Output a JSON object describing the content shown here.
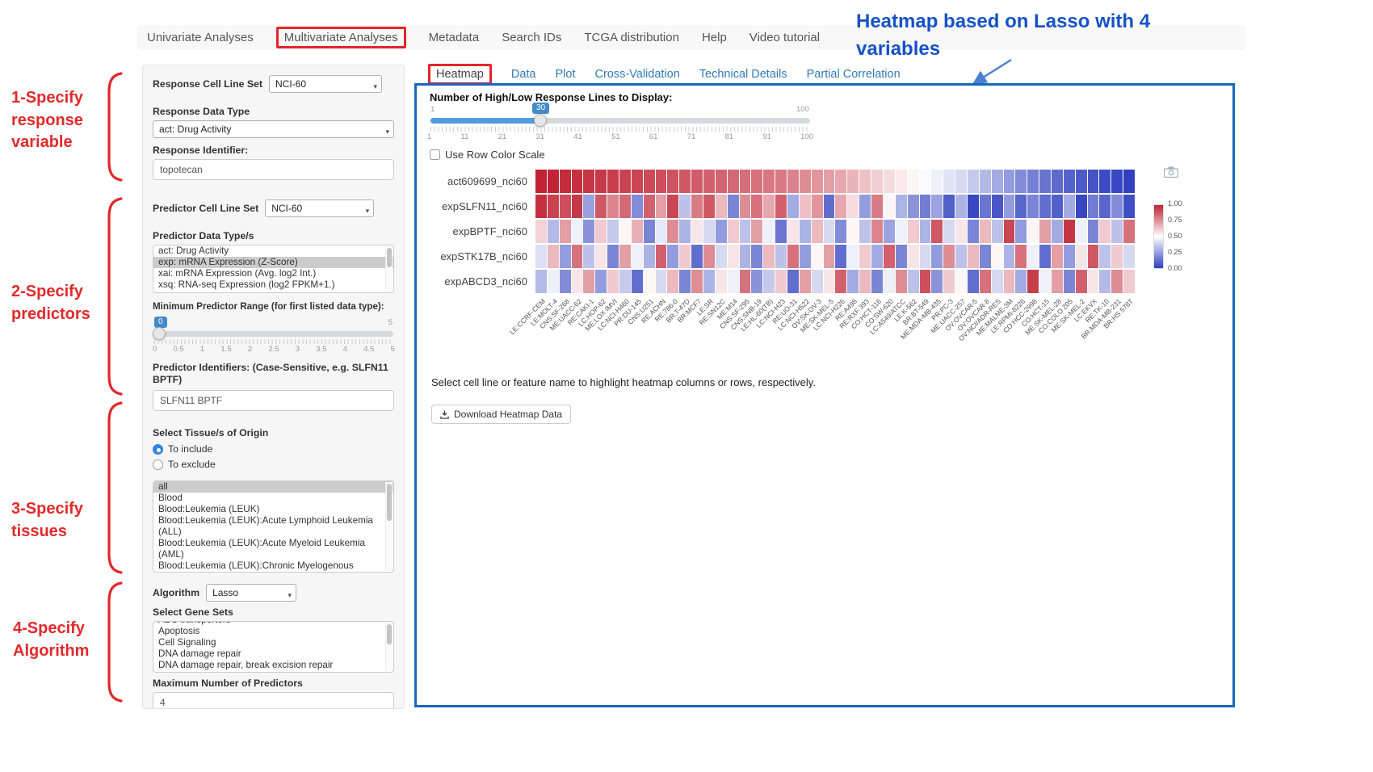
{
  "nav": {
    "tabs": [
      {
        "label": "Univariate Analyses"
      },
      {
        "label": "Multivariate Analyses",
        "active": true
      },
      {
        "label": "Metadata"
      },
      {
        "label": "Search IDs"
      },
      {
        "label": "TCGA distribution"
      },
      {
        "label": "Help"
      },
      {
        "label": "Video tutorial"
      }
    ]
  },
  "annotations": {
    "step1": {
      "lines": [
        "1-Specify",
        "response",
        "variable"
      ]
    },
    "step2": {
      "lines": [
        "2-Specify",
        "predictors"
      ]
    },
    "step3": {
      "lines": [
        "3-Specify",
        "tissues"
      ]
    },
    "step4": {
      "lines": [
        "4-Specify",
        "Algorithm"
      ]
    },
    "heatmap_note": "Heatmap based on Lasso with 4 variables"
  },
  "sidebar": {
    "response_cell_line_set": {
      "label": "Response Cell Line Set",
      "value": "NCI-60"
    },
    "response_data_type": {
      "label": "Response Data Type",
      "value": "act: Drug Activity"
    },
    "response_identifier": {
      "label": "Response Identifier:",
      "value": "topotecan"
    },
    "predictor_cell_line_set": {
      "label": "Predictor Cell Line Set",
      "value": "NCI-60"
    },
    "predictor_data_types": {
      "label": "Predictor Data Type/s",
      "options": [
        {
          "label": "act: Drug Activity",
          "selected": false
        },
        {
          "label": "exp: mRNA Expression (Z-Score)",
          "selected": true
        },
        {
          "label": "xai: mRNA Expression (Avg. log2 Int.)",
          "selected": false
        },
        {
          "label": "xsq: RNA-seq Expression (log2 FPKM+1.)",
          "selected": false
        }
      ]
    },
    "min_predictor_range": {
      "label": "Minimum Predictor Range (for first listed data type):",
      "value": "0",
      "min": "0",
      "max": "5",
      "ticks": [
        "0",
        "0.5",
        "1",
        "1.5",
        "2",
        "2.5",
        "3",
        "3.5",
        "4",
        "4.5",
        "5"
      ]
    },
    "predictor_identifiers": {
      "label": "Predictor Identifiers: (Case-Sensitive, e.g. SLFN11 BPTF)",
      "value": "SLFN11 BPTF"
    },
    "tissue_origin": {
      "label": "Select Tissue/s of Origin",
      "options": [
        {
          "label": "To include",
          "selected": true
        },
        {
          "label": "To exclude",
          "selected": false
        }
      ]
    },
    "tissue_list": {
      "options": [
        {
          "label": "all",
          "selected": true
        },
        "Blood",
        "Blood:Leukemia (LEUK)",
        "Blood:Leukemia (LEUK):Acute Lymphoid Leukemia (ALL)",
        "Blood:Leukemia (LEUK):Acute Myeloid Leukemia (AML)",
        "Blood:Leukemia (LEUK):Chronic Myelogenous Leukemia (CML)"
      ]
    },
    "algorithm": {
      "label": "Algorithm",
      "value": "Lasso"
    },
    "gene_sets": {
      "label": "Select Gene Sets",
      "options": [
        "ABC transporters",
        "Apoptosis",
        "Cell Signaling",
        "DNA damage repair",
        "DNA damage repair, break excision repair"
      ]
    },
    "max_predictors": {
      "label": "Maximum Number of Predictors",
      "value": "4"
    }
  },
  "main": {
    "tabs": [
      "Heatmap",
      "Data",
      "Plot",
      "Cross-Validation",
      "Technical Details",
      "Partial Correlation"
    ],
    "active_tab": "Heatmap",
    "slider": {
      "label": "Number of High/Low Response Lines to Display:",
      "value": "30",
      "min": "1",
      "max": "100",
      "ticks": [
        "1",
        "11",
        "21",
        "31",
        "41",
        "51",
        "61",
        "71",
        "81",
        "91",
        "100"
      ]
    },
    "row_color_scale_label": "Use Row Color Scale",
    "hint": "Select cell line or feature name to highlight heatmap columns or rows, respectively.",
    "download_button": "Download Heatmap Data"
  },
  "chart_data": {
    "type": "heatmap",
    "rows": [
      "act609699_nci60",
      "expSLFN11_nci60",
      "expBPTF_nci60",
      "expSTK17B_nci60",
      "expABCD3_nci60"
    ],
    "columns": [
      "LE:CCRF-CEM",
      "LE:MOLT-4",
      "CNS:SF-268",
      "ME:UACC-62",
      "RE:CAKI-1",
      "LC:HOP-62",
      "ME:LOX IMVI",
      "LC:NCI-H460",
      "PR:DU-145",
      "CNS:U251",
      "RE:ACHN",
      "RE:786-0",
      "BR:T-47D",
      "BR:MCF7",
      "LE:SR",
      "RE:SN12C",
      "ME:M14",
      "CNS:SF-295",
      "CNS:SNB-19",
      "LE:HL-60(TB)",
      "LC:NCI-H23",
      "RE:UO-31",
      "LC:NCI-H522",
      "OV:SK-OV-3",
      "ME:SK-MEL-5",
      "LC:NCI-H226",
      "RE:A498",
      "RE:RXF 393",
      "CO:HCT-116",
      "CO:SW-620",
      "LC:A549/ATCC",
      "LE:K-562",
      "BR:BT-549",
      "ME:MDA-MB-435",
      "PR:PC-3",
      "ME:UACC-257",
      "OV:OVCAR-5",
      "OV:OVCAR-8",
      "OV:NCI/ADR-RES",
      "ME:MALME-3M",
      "LE:RPMI-8226",
      "CO:HCC-2998",
      "CO:HCT-15",
      "ME:SK-MEL-28",
      "CO:COLO 205",
      "ME:SK-MEL-2",
      "LC:EKVX",
      "RE:TK-10",
      "BR:MDA-MB-231",
      "BR:HS 578T"
    ],
    "values": [
      [
        1.0,
        1.0,
        0.98,
        0.97,
        0.96,
        0.95,
        0.94,
        0.93,
        0.92,
        0.91,
        0.9,
        0.89,
        0.88,
        0.87,
        0.86,
        0.85,
        0.84,
        0.83,
        0.82,
        0.81,
        0.8,
        0.78,
        0.76,
        0.74,
        0.72,
        0.7,
        0.67,
        0.64,
        0.61,
        0.58,
        0.55,
        0.52,
        0.49,
        0.46,
        0.43,
        0.4,
        0.36,
        0.32,
        0.28,
        0.24,
        0.2,
        0.17,
        0.14,
        0.11,
        0.09,
        0.07,
        0.05,
        0.03,
        0.02,
        0.0
      ],
      [
        0.97,
        0.93,
        0.9,
        0.95,
        0.25,
        0.88,
        0.78,
        0.84,
        0.2,
        0.86,
        0.72,
        0.92,
        0.34,
        0.8,
        0.88,
        0.66,
        0.18,
        0.76,
        0.82,
        0.7,
        0.86,
        0.28,
        0.64,
        0.74,
        0.12,
        0.7,
        0.58,
        0.24,
        0.8,
        0.52,
        0.3,
        0.22,
        0.16,
        0.26,
        0.08,
        0.3,
        0.02,
        0.14,
        0.06,
        0.24,
        0.1,
        0.18,
        0.12,
        0.08,
        0.28,
        0.02,
        0.16,
        0.1,
        0.2,
        0.04
      ],
      [
        0.6,
        0.32,
        0.72,
        0.46,
        0.22,
        0.62,
        0.36,
        0.52,
        0.68,
        0.18,
        0.44,
        0.76,
        0.3,
        0.56,
        0.4,
        0.24,
        0.62,
        0.34,
        0.72,
        0.46,
        0.14,
        0.56,
        0.3,
        0.66,
        0.4,
        0.2,
        0.52,
        0.34,
        0.78,
        0.26,
        0.46,
        0.62,
        0.3,
        0.88,
        0.4,
        0.56,
        0.18,
        0.66,
        0.34,
        0.92,
        0.24,
        0.52,
        0.72,
        0.28,
        0.96,
        0.46,
        0.18,
        0.62,
        0.34,
        0.82
      ],
      [
        0.42,
        0.66,
        0.24,
        0.82,
        0.34,
        0.56,
        0.18,
        0.72,
        0.46,
        0.3,
        0.86,
        0.24,
        0.62,
        0.12,
        0.76,
        0.4,
        0.56,
        0.3,
        0.18,
        0.66,
        0.34,
        0.82,
        0.24,
        0.52,
        0.72,
        0.12,
        0.46,
        0.62,
        0.28,
        0.86,
        0.18,
        0.56,
        0.4,
        0.24,
        0.76,
        0.34,
        0.66,
        0.18,
        0.52,
        0.3,
        0.82,
        0.46,
        0.12,
        0.72,
        0.24,
        0.56,
        0.88,
        0.34,
        0.62,
        0.4
      ],
      [
        0.32,
        0.46,
        0.2,
        0.56,
        0.72,
        0.24,
        0.62,
        0.36,
        0.12,
        0.52,
        0.4,
        0.66,
        0.18,
        0.76,
        0.3,
        0.56,
        0.46,
        0.82,
        0.22,
        0.36,
        0.62,
        0.12,
        0.72,
        0.4,
        0.56,
        0.86,
        0.28,
        0.66,
        0.18,
        0.46,
        0.76,
        0.34,
        0.9,
        0.22,
        0.62,
        0.52,
        0.12,
        0.82,
        0.4,
        0.66,
        0.28,
        0.94,
        0.46,
        0.72,
        0.18,
        0.86,
        0.56,
        0.32,
        0.76,
        0.62
      ]
    ],
    "colorbar_ticks": [
      "1.00",
      "0.75",
      "0.50",
      "0.25",
      "0.00"
    ],
    "color_high": "#c02334",
    "color_mid": "#ffffff",
    "color_low": "#3040bf"
  },
  "colors": {
    "panel_border": "#1767c0",
    "annotation_red": "#e2262a",
    "annotation_blue": "#1552c8",
    "slider_blue": "#428bca"
  }
}
